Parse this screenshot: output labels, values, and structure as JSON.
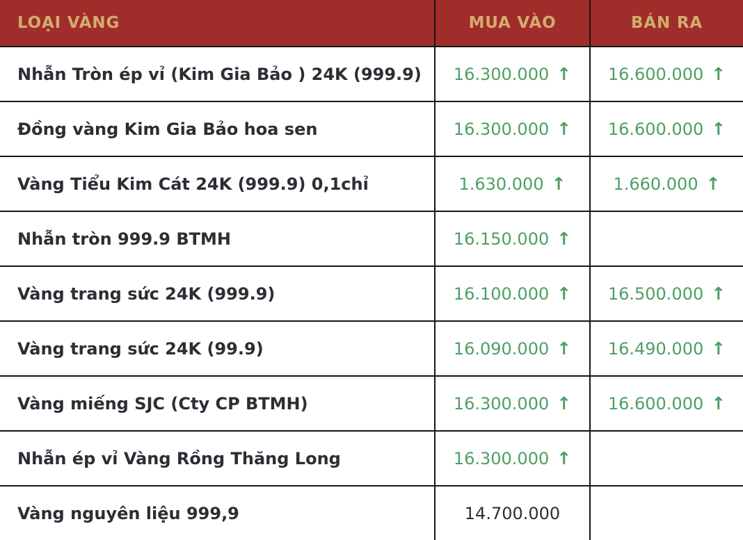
{
  "colors": {
    "header_bg": "#A02D2A",
    "header_text": "#D2AC6F",
    "up_green": "#4E9E64",
    "text_dark": "#2B2E34",
    "border": "#141414"
  },
  "header": {
    "type_label": "LOẠI VÀNG",
    "buy_label": "MUA VÀO",
    "sell_label": "BÁN RA"
  },
  "rows": [
    {
      "name": "Nhẫn Tròn ép vỉ (Kim Gia Bảo ) 24K (999.9)",
      "buy": {
        "value": "16.300.000",
        "trend": "up",
        "arrow": "↑"
      },
      "sell": {
        "value": "16.600.000",
        "trend": "up",
        "arrow": "↑"
      }
    },
    {
      "name": "Đồng vàng Kim Gia Bảo hoa sen",
      "buy": {
        "value": "16.300.000",
        "trend": "up",
        "arrow": "↑"
      },
      "sell": {
        "value": "16.600.000",
        "trend": "up",
        "arrow": "↑"
      }
    },
    {
      "name": "Vàng Tiểu Kim Cát 24K (999.9) 0,1chỉ",
      "buy": {
        "value": "1.630.000",
        "trend": "up",
        "arrow": "↑"
      },
      "sell": {
        "value": "1.660.000",
        "trend": "up",
        "arrow": "↑"
      }
    },
    {
      "name": "Nhẫn tròn 999.9 BTMH",
      "buy": {
        "value": "16.150.000",
        "trend": "up",
        "arrow": "↑"
      },
      "sell": {
        "value": "",
        "trend": "none",
        "arrow": ""
      }
    },
    {
      "name": "Vàng trang sức 24K (999.9)",
      "buy": {
        "value": "16.100.000",
        "trend": "up",
        "arrow": "↑"
      },
      "sell": {
        "value": "16.500.000",
        "trend": "up",
        "arrow": "↑"
      }
    },
    {
      "name": "Vàng trang sức 24K (99.9)",
      "buy": {
        "value": "16.090.000",
        "trend": "up",
        "arrow": "↑"
      },
      "sell": {
        "value": "16.490.000",
        "trend": "up",
        "arrow": "↑"
      }
    },
    {
      "name": "Vàng miếng SJC (Cty CP BTMH)",
      "buy": {
        "value": "16.300.000",
        "trend": "up",
        "arrow": "↑"
      },
      "sell": {
        "value": "16.600.000",
        "trend": "up",
        "arrow": "↑"
      }
    },
    {
      "name": "Nhẫn ép vỉ Vàng Rồng Thăng Long",
      "buy": {
        "value": "16.300.000",
        "trend": "up",
        "arrow": "↑"
      },
      "sell": {
        "value": "",
        "trend": "none",
        "arrow": ""
      }
    },
    {
      "name": "Vàng nguyên liệu 999,9",
      "buy": {
        "value": "14.700.000",
        "trend": "none",
        "arrow": ""
      },
      "sell": {
        "value": "",
        "trend": "none",
        "arrow": ""
      }
    }
  ],
  "chart_data": {
    "type": "table",
    "title": "Bảng giá vàng",
    "columns": [
      "LOẠI VÀNG",
      "MUA VÀO",
      "BÁN RA"
    ],
    "rows": [
      {
        "loai_vang": "Nhẫn Tròn ép vỉ (Kim Gia Bảo ) 24K (999.9)",
        "mua_vao": 16300000,
        "mua_trend": "up",
        "ban_ra": 16600000,
        "ban_trend": "up"
      },
      {
        "loai_vang": "Đồng vàng Kim Gia Bảo hoa sen",
        "mua_vao": 16300000,
        "mua_trend": "up",
        "ban_ra": 16600000,
        "ban_trend": "up"
      },
      {
        "loai_vang": "Vàng Tiểu Kim Cát 24K (999.9) 0,1chỉ",
        "mua_vao": 1630000,
        "mua_trend": "up",
        "ban_ra": 1660000,
        "ban_trend": "up"
      },
      {
        "loai_vang": "Nhẫn tròn 999.9 BTMH",
        "mua_vao": 16150000,
        "mua_trend": "up",
        "ban_ra": null,
        "ban_trend": null
      },
      {
        "loai_vang": "Vàng trang sức 24K (999.9)",
        "mua_vao": 16100000,
        "mua_trend": "up",
        "ban_ra": 16500000,
        "ban_trend": "up"
      },
      {
        "loai_vang": "Vàng trang sức 24K (99.9)",
        "mua_vao": 16090000,
        "mua_trend": "up",
        "ban_ra": 16490000,
        "ban_trend": "up"
      },
      {
        "loai_vang": "Vàng miếng SJC (Cty CP BTMH)",
        "mua_vao": 16300000,
        "mua_trend": "up",
        "ban_ra": 16600000,
        "ban_trend": "up"
      },
      {
        "loai_vang": "Nhẫn ép vỉ Vàng Rồng Thăng Long",
        "mua_vao": 16300000,
        "mua_trend": "up",
        "ban_ra": null,
        "ban_trend": null
      },
      {
        "loai_vang": "Vàng nguyên liệu 999,9",
        "mua_vao": 14700000,
        "mua_trend": "flat",
        "ban_ra": null,
        "ban_trend": null
      }
    ]
  }
}
